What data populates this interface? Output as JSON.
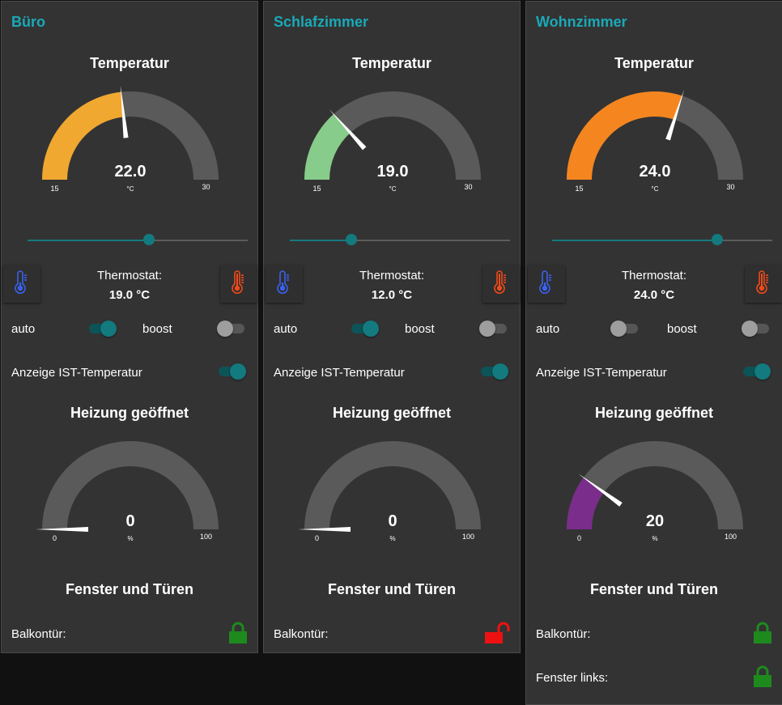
{
  "rooms": [
    {
      "name": "Büro",
      "temp_title": "Temperatur",
      "temp_gauge": {
        "value": "22.0",
        "unit": "°C",
        "min_label": "15",
        "max_label": "30",
        "min": 15,
        "max": 30,
        "num": 22.0,
        "color": "#f0a830"
      },
      "slider_fraction": 0.55,
      "thermostat_label": "Thermostat:",
      "thermostat_value": "19.0 °C",
      "auto_label": "auto",
      "auto_on": true,
      "boost_label": "boost",
      "boost_on": false,
      "ist_label": "Anzeige IST-Temperatur",
      "ist_on": true,
      "heating_title": "Heizung geöffnet",
      "heat_gauge": {
        "value": "0",
        "unit": "%",
        "min_label": "0",
        "max_label": "100",
        "min": 0,
        "max": 100,
        "num": 0,
        "color": "#7a2d8a"
      },
      "windows_title": "Fenster und Türen",
      "windows": [
        {
          "label": "Balkontür:",
          "locked": true
        }
      ]
    },
    {
      "name": "Schlafzimmer",
      "temp_title": "Temperatur",
      "temp_gauge": {
        "value": "19.0",
        "unit": "°C",
        "min_label": "15",
        "max_label": "30",
        "min": 15,
        "max": 30,
        "num": 19.0,
        "color": "#87cc8a"
      },
      "slider_fraction": 0.28,
      "thermostat_label": "Thermostat:",
      "thermostat_value": "12.0 °C",
      "auto_label": "auto",
      "auto_on": true,
      "boost_label": "boost",
      "boost_on": false,
      "ist_label": "Anzeige IST-Temperatur",
      "ist_on": true,
      "heating_title": "Heizung geöffnet",
      "heat_gauge": {
        "value": "0",
        "unit": "%",
        "min_label": "0",
        "max_label": "100",
        "min": 0,
        "max": 100,
        "num": 0,
        "color": "#7a2d8a"
      },
      "windows_title": "Fenster und Türen",
      "windows": [
        {
          "label": "Balkontür:",
          "locked": false
        }
      ]
    },
    {
      "name": "Wohnzimmer",
      "temp_title": "Temperatur",
      "temp_gauge": {
        "value": "24.0",
        "unit": "°C",
        "min_label": "15",
        "max_label": "30",
        "min": 15,
        "max": 30,
        "num": 24.0,
        "color": "#f5861f"
      },
      "slider_fraction": 0.75,
      "thermostat_label": "Thermostat:",
      "thermostat_value": "24.0 °C",
      "auto_label": "auto",
      "auto_on": false,
      "boost_label": "boost",
      "boost_on": false,
      "ist_label": "Anzeige IST-Temperatur",
      "ist_on": true,
      "heating_title": "Heizung geöffnet",
      "heat_gauge": {
        "value": "20",
        "unit": "%",
        "min_label": "0",
        "max_label": "100",
        "min": 0,
        "max": 100,
        "num": 20,
        "color": "#7a2d8a"
      },
      "windows_title": "Fenster und Türen",
      "windows": [
        {
          "label": "Balkontür:",
          "locked": true
        },
        {
          "label": "Fenster links:",
          "locked": true
        }
      ]
    }
  ],
  "icons": {
    "thermo_cold": "thermometer-cold-icon",
    "thermo_hot": "thermometer-hot-icon",
    "lock_closed": "lock-closed-icon",
    "lock_open": "lock-open-icon"
  },
  "colors": {
    "accent": "#1aa9b8",
    "toggle_on": "#137a7f",
    "gauge_track": "#5a5a5a",
    "lock_green": "#1e8a1e",
    "lock_red": "#ee1111",
    "thermo_cold": "#3a62f0",
    "thermo_hot": "#f04a1a"
  }
}
